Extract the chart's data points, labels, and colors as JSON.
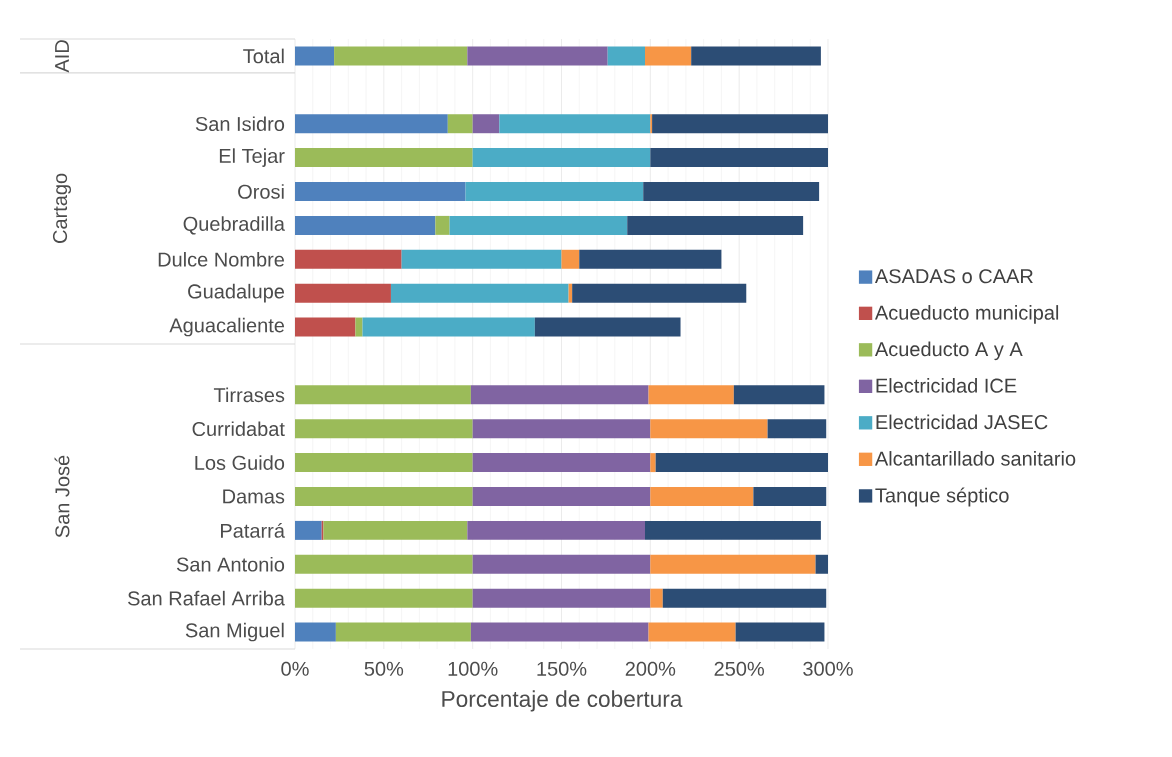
{
  "chart_data": {
    "type": "bar",
    "orientation": "horizontal",
    "stacked": true,
    "xlabel": "Porcentaje de cobertura",
    "categories": [
      "Total",
      null,
      "San Isidro",
      "El Tejar",
      "Orosi",
      "Quebradilla",
      "Dulce Nombre",
      "Guadalupe",
      "Aguacaliente",
      null,
      "Tirrases",
      "Curridabat",
      "Los Guido",
      "Damas",
      "Patarrá",
      "San Antonio",
      "San Rafael Arriba",
      "San Miguel"
    ],
    "series": [
      {
        "name": "ASADAS o CAAR",
        "color": "#4f81bd",
        "values": [
          22,
          null,
          86,
          null,
          96,
          79,
          null,
          null,
          null,
          null,
          null,
          null,
          null,
          null,
          15,
          null,
          null,
          23
        ]
      },
      {
        "name": "Acueducto municipal",
        "color": "#c0504d",
        "values": [
          null,
          null,
          null,
          null,
          null,
          null,
          60,
          54,
          34,
          null,
          null,
          null,
          null,
          null,
          1,
          null,
          null,
          null
        ]
      },
      {
        "name": "Acueducto A y A",
        "color": "#9bbb59",
        "values": [
          75,
          null,
          14,
          100,
          null,
          8,
          null,
          null,
          4,
          null,
          99,
          100,
          100,
          100,
          81,
          100,
          100,
          76
        ]
      },
      {
        "name": "Electricidad ICE",
        "color": "#8064a2",
        "values": [
          79,
          null,
          15,
          null,
          null,
          null,
          null,
          null,
          null,
          null,
          100,
          100,
          100,
          100,
          100,
          100,
          100,
          100
        ]
      },
      {
        "name": "Electricidad JASEC",
        "color": "#4bacc6",
        "values": [
          21,
          null,
          85,
          100,
          100,
          100,
          90,
          100,
          97,
          null,
          null,
          null,
          null,
          null,
          null,
          null,
          null,
          null
        ]
      },
      {
        "name": "Alcantarillado sanitario",
        "color": "#f79646",
        "values": [
          26,
          null,
          1,
          null,
          null,
          null,
          10,
          2,
          null,
          null,
          48,
          66,
          3,
          58,
          null,
          93,
          7,
          49
        ]
      },
      {
        "name": "Tanque séptico",
        "color": "#2c4d75",
        "values": [
          73,
          null,
          99,
          100,
          99,
          99,
          80,
          98,
          82,
          null,
          51,
          33,
          97,
          41,
          99,
          7,
          92,
          50
        ]
      }
    ],
    "xlim": [
      0,
      300
    ],
    "xticks": [
      {
        "value": 0,
        "label": "0%"
      },
      {
        "value": 50,
        "label": "50%"
      },
      {
        "value": 100,
        "label": "100%"
      },
      {
        "value": 150,
        "label": "150%"
      },
      {
        "value": 200,
        "label": "200%"
      },
      {
        "value": 250,
        "label": "250%"
      },
      {
        "value": 300,
        "label": "300%"
      }
    ],
    "grid": "x",
    "legend": "right",
    "annotations": [
      "AID",
      "Cartago",
      "San José"
    ]
  }
}
